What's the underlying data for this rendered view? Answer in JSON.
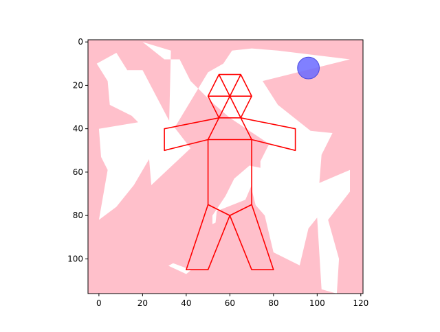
{
  "colors": {
    "background": "#ffc0cb",
    "open_area": "#ffffff",
    "figure": "#ff0000",
    "ball": "#6a6aff",
    "ball_edge": "#4a4ae0",
    "axis": "#000000"
  },
  "axes": {
    "xlim": [
      -5,
      121
    ],
    "ylim": [
      116,
      -1
    ],
    "y_inverted": true,
    "xticks": [
      0,
      20,
      40,
      60,
      80,
      100,
      120
    ],
    "yticks": [
      0,
      20,
      40,
      60,
      80,
      100
    ]
  },
  "scene": {
    "open_polygons": [
      [
        [
          -1,
          10
        ],
        [
          4,
          18
        ],
        [
          5,
          29
        ],
        [
          15,
          34
        ],
        [
          18,
          37
        ],
        [
          0,
          40
        ],
        [
          1,
          53
        ],
        [
          4,
          59
        ],
        [
          0,
          82
        ],
        [
          8,
          76
        ],
        [
          16,
          66
        ],
        [
          23,
          54
        ],
        [
          24,
          66
        ],
        [
          42,
          49
        ],
        [
          32,
          36
        ],
        [
          20,
          13
        ],
        [
          13,
          13
        ],
        [
          8,
          5
        ]
      ],
      [
        [
          20,
          0
        ],
        [
          33,
          4
        ],
        [
          32,
          44
        ],
        [
          50,
          14
        ],
        [
          57,
          10
        ],
        [
          61,
          4
        ],
        [
          70,
          3
        ],
        [
          82,
          4
        ],
        [
          115,
          8
        ],
        [
          75,
          18
        ],
        [
          82,
          29
        ],
        [
          97,
          41
        ],
        [
          107,
          42
        ],
        [
          102,
          52
        ],
        [
          101,
          65
        ],
        [
          115,
          59
        ],
        [
          115,
          69
        ],
        [
          105,
          82
        ],
        [
          110,
          100
        ],
        [
          109,
          116
        ],
        [
          102,
          114
        ],
        [
          100,
          81
        ],
        [
          96,
          86
        ],
        [
          92,
          103
        ],
        [
          80,
          97
        ],
        [
          76,
          80
        ],
        [
          69,
          72
        ],
        [
          54,
          78
        ],
        [
          52,
          97
        ],
        [
          40,
          107
        ],
        [
          25,
          100
        ],
        [
          33,
          95
        ],
        [
          37,
          100
        ],
        [
          45,
          93
        ],
        [
          52,
          80
        ],
        [
          58,
          71
        ],
        [
          62,
          63
        ],
        [
          69,
          57
        ],
        [
          74,
          58
        ],
        [
          74,
          55
        ],
        [
          78,
          47
        ],
        [
          60,
          35
        ],
        [
          52,
          28
        ],
        [
          48,
          24
        ],
        [
          42,
          18
        ],
        [
          37,
          8
        ],
        [
          30,
          8
        ]
      ]
    ],
    "blocking_polygons": [
      [
        [
          4,
          105
        ],
        [
          17,
          94
        ],
        [
          12,
          88
        ],
        [
          24,
          80
        ],
        [
          35,
          66
        ],
        [
          36,
          65
        ],
        [
          38,
          75
        ],
        [
          52,
          46
        ],
        [
          52,
          84
        ],
        [
          56,
          82
        ],
        [
          64,
          80
        ],
        [
          70,
          66
        ],
        [
          70,
          68
        ],
        [
          76,
          92
        ],
        [
          80,
          100
        ],
        [
          62,
          116
        ],
        [
          60,
          104
        ],
        [
          54,
          99
        ],
        [
          48,
          106
        ],
        [
          42,
          105
        ],
        [
          34,
          102
        ],
        [
          25,
          107
        ],
        [
          6,
          113
        ]
      ]
    ],
    "figure": {
      "head_hexagon": [
        [
          55,
          15
        ],
        [
          65,
          15
        ],
        [
          70,
          25
        ],
        [
          65,
          35
        ],
        [
          55,
          35
        ],
        [
          50,
          25
        ]
      ],
      "head_spokes": [
        [
          [
            55,
            15
          ],
          [
            65,
            35
          ]
        ],
        [
          [
            65,
            15
          ],
          [
            55,
            35
          ]
        ],
        [
          [
            50,
            25
          ],
          [
            70,
            25
          ]
        ]
      ],
      "left_arm": [
        [
          55,
          35
        ],
        [
          30,
          40
        ],
        [
          30,
          50
        ],
        [
          50,
          45
        ]
      ],
      "right_arm": [
        [
          65,
          35
        ],
        [
          90,
          40
        ],
        [
          90,
          50
        ],
        [
          70,
          45
        ]
      ],
      "torso": [
        [
          50,
          45
        ],
        [
          70,
          45
        ],
        [
          70,
          75
        ],
        [
          60,
          80
        ],
        [
          50,
          75
        ]
      ],
      "left_leg": [
        [
          50,
          75
        ],
        [
          40,
          105
        ],
        [
          50,
          105
        ],
        [
          60,
          80
        ]
      ],
      "right_leg": [
        [
          70,
          75
        ],
        [
          80,
          105
        ],
        [
          70,
          105
        ],
        [
          60,
          80
        ]
      ]
    },
    "ball": {
      "x": 96,
      "y": 12,
      "r": 5
    }
  }
}
